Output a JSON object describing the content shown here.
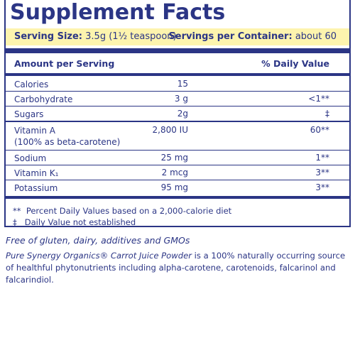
{
  "header": {
    "title": "Supplement Facts"
  },
  "serving": {
    "size_label": "Serving Size:",
    "size_value": "3.5g (1½ teaspoon)",
    "per_container_label": "Servings per Container:",
    "per_container_value": "about 60"
  },
  "table": {
    "columns": [
      "Amount per Serving",
      "% Daily Value"
    ],
    "rows": [
      [
        "Calories",
        "15",
        null
      ],
      [
        "Carbohydrate",
        "3 g",
        "<1**"
      ],
      [
        "Sugars",
        "2g",
        "‡"
      ],
      [
        "Vitamin A",
        "(100% as beta-carotene)",
        "2,800 IU",
        "60**"
      ],
      [
        "Sodium",
        "25 mg",
        "1**"
      ],
      [
        "Vitamin K₁",
        "2 mcg",
        "3**"
      ],
      [
        "Potassium",
        "95 mg",
        "3**"
      ]
    ]
  },
  "footnotes": [
    [
      "**",
      "Percent Daily Values based on a 2,000-calorie diet"
    ],
    [
      "‡",
      "Daily Value not established"
    ]
  ],
  "claims": "Free of gluten, dairy, additives and GMOs",
  "description": {
    "product": "Pure Synergy Organics® Carrot Juice Powder",
    "text": "is a 100% naturally occurring source of healthful phytonutrients including alpha-carotene, carotenoids, falcarinol and falcarindiol."
  }
}
